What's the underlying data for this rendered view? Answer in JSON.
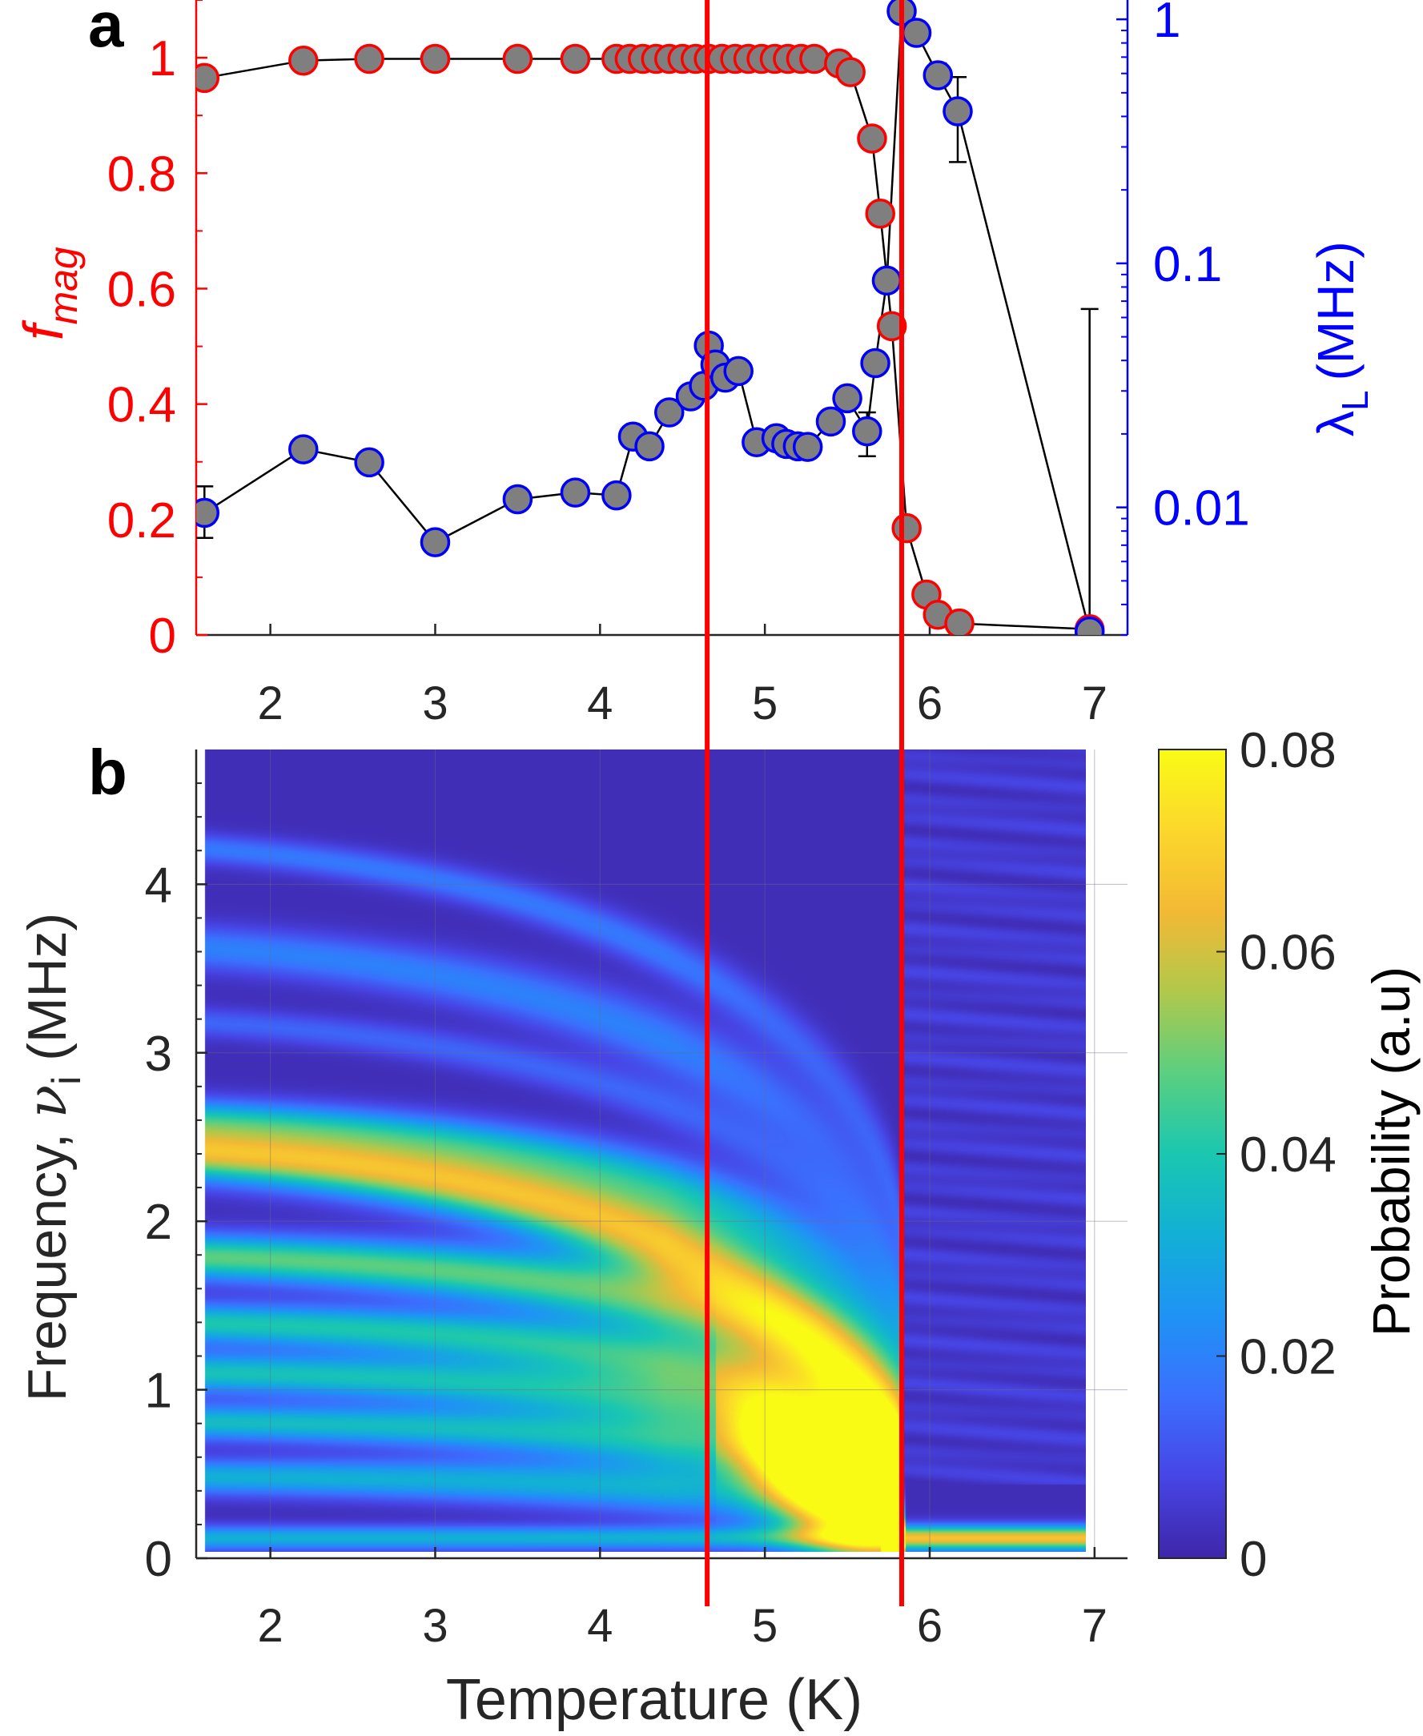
{
  "colors": {
    "fmag": "#ff0000",
    "lambda": "#0000ff",
    "marker_fill": "#7f7f7f",
    "vline": "#ff0000",
    "axis": "#262626"
  },
  "chart_data": [
    {
      "panel": "a",
      "type": "scatter",
      "xlim": [
        1.55,
        7.2
      ],
      "x_ticks": [
        2,
        3,
        4,
        5,
        6,
        7
      ],
      "grid": false,
      "vertical_lines": [
        4.65,
        5.83
      ],
      "left_axis": {
        "label_main": "f",
        "label_sub": "mag",
        "ylim": [
          0,
          1.1
        ],
        "ticks": [
          0,
          0.2,
          0.4,
          0.6,
          0.8,
          1
        ],
        "tick_labels": [
          "0",
          "0.2",
          "0.4",
          "0.6",
          "0.8",
          "1"
        ]
      },
      "right_axis": {
        "label_main": "λ",
        "label_sub": "L",
        "label_unit": "(MHz)",
        "scale": "log",
        "ylim": [
          0.003,
          1.2
        ],
        "ticks": [
          0.01,
          0.1,
          1
        ],
        "tick_labels": [
          "0.01",
          "0.1",
          "1"
        ]
      },
      "series": [
        {
          "name": "f_mag",
          "axis": "left",
          "marker_edge": "#ff0000",
          "points": [
            {
              "x": 1.6,
              "y": 0.965,
              "err": 0.005
            },
            {
              "x": 2.2,
              "y": 0.995,
              "err": 0.004
            },
            {
              "x": 2.6,
              "y": 0.998,
              "err": 0.003
            },
            {
              "x": 3.0,
              "y": 0.998,
              "err": 0.003
            },
            {
              "x": 3.5,
              "y": 0.998,
              "err": 0.003
            },
            {
              "x": 3.85,
              "y": 0.998,
              "err": 0.003
            },
            {
              "x": 4.1,
              "y": 0.998,
              "err": 0.003
            },
            {
              "x": 4.18,
              "y": 0.998,
              "err": 0.003
            },
            {
              "x": 4.26,
              "y": 0.998,
              "err": 0.003
            },
            {
              "x": 4.34,
              "y": 0.998,
              "err": 0.003
            },
            {
              "x": 4.42,
              "y": 0.998,
              "err": 0.003
            },
            {
              "x": 4.5,
              "y": 0.998,
              "err": 0.003
            },
            {
              "x": 4.58,
              "y": 0.998,
              "err": 0.003
            },
            {
              "x": 4.66,
              "y": 0.998,
              "err": 0.003
            },
            {
              "x": 4.74,
              "y": 0.998,
              "err": 0.003
            },
            {
              "x": 4.82,
              "y": 0.998,
              "err": 0.003
            },
            {
              "x": 4.9,
              "y": 0.998,
              "err": 0.003
            },
            {
              "x": 4.98,
              "y": 0.998,
              "err": 0.003
            },
            {
              "x": 5.06,
              "y": 0.998,
              "err": 0.003
            },
            {
              "x": 5.14,
              "y": 0.998,
              "err": 0.003
            },
            {
              "x": 5.22,
              "y": 0.998,
              "err": 0.003
            },
            {
              "x": 5.3,
              "y": 0.998,
              "err": 0.003
            },
            {
              "x": 5.45,
              "y": 0.99,
              "err": 0.004
            },
            {
              "x": 5.52,
              "y": 0.975,
              "err": 0.005
            },
            {
              "x": 5.65,
              "y": 0.86,
              "err": 0.006
            },
            {
              "x": 5.7,
              "y": 0.73,
              "err": 0.006
            },
            {
              "x": 5.77,
              "y": 0.535,
              "err": 0.008
            },
            {
              "x": 5.86,
              "y": 0.185,
              "err": 0.005
            },
            {
              "x": 5.98,
              "y": 0.07,
              "err": 0.004
            },
            {
              "x": 6.05,
              "y": 0.035,
              "err": 0.004
            },
            {
              "x": 6.18,
              "y": 0.02,
              "err": 0.003
            },
            {
              "x": 6.97,
              "y": 0.01,
              "err": 0.003
            }
          ]
        },
        {
          "name": "lambda_L",
          "axis": "right",
          "marker_edge": "#0000ff",
          "points": [
            {
              "x": 1.6,
              "y": 0.0095,
              "lo": 0.0075,
              "hi": 0.0122
            },
            {
              "x": 2.2,
              "y": 0.0173,
              "lo": 0.0163,
              "hi": 0.0183
            },
            {
              "x": 2.6,
              "y": 0.0153,
              "lo": 0.0145,
              "hi": 0.0162
            },
            {
              "x": 3.0,
              "y": 0.0072,
              "lo": 0.0068,
              "hi": 0.0077
            },
            {
              "x": 3.5,
              "y": 0.0108,
              "lo": 0.0103,
              "hi": 0.0113
            },
            {
              "x": 3.85,
              "y": 0.0115,
              "lo": 0.011,
              "hi": 0.012
            },
            {
              "x": 4.1,
              "y": 0.0112,
              "lo": 0.0107,
              "hi": 0.0117
            },
            {
              "x": 4.2,
              "y": 0.0195,
              "lo": 0.0188,
              "hi": 0.0202
            },
            {
              "x": 4.3,
              "y": 0.0178,
              "lo": 0.0171,
              "hi": 0.0185
            },
            {
              "x": 4.42,
              "y": 0.0245,
              "lo": 0.0237,
              "hi": 0.0253
            },
            {
              "x": 4.55,
              "y": 0.0285,
              "lo": 0.0276,
              "hi": 0.0294
            },
            {
              "x": 4.63,
              "y": 0.0315,
              "lo": 0.0305,
              "hi": 0.0325
            },
            {
              "x": 4.66,
              "y": 0.046,
              "lo": 0.0446,
              "hi": 0.0474
            },
            {
              "x": 4.7,
              "y": 0.0385,
              "lo": 0.0373,
              "hi": 0.0397
            },
            {
              "x": 4.76,
              "y": 0.034,
              "lo": 0.033,
              "hi": 0.035
            },
            {
              "x": 4.84,
              "y": 0.0362,
              "lo": 0.0351,
              "hi": 0.0373
            },
            {
              "x": 4.95,
              "y": 0.0185,
              "lo": 0.0179,
              "hi": 0.0191
            },
            {
              "x": 5.07,
              "y": 0.0192,
              "lo": 0.0186,
              "hi": 0.0198
            },
            {
              "x": 5.13,
              "y": 0.0182,
              "lo": 0.0176,
              "hi": 0.0188
            },
            {
              "x": 5.2,
              "y": 0.0178,
              "lo": 0.0172,
              "hi": 0.0184
            },
            {
              "x": 5.26,
              "y": 0.0177,
              "lo": 0.0171,
              "hi": 0.0183
            },
            {
              "x": 5.4,
              "y": 0.0225,
              "lo": 0.0218,
              "hi": 0.0232
            },
            {
              "x": 5.5,
              "y": 0.028,
              "lo": 0.0271,
              "hi": 0.0289
            },
            {
              "x": 5.62,
              "y": 0.0205,
              "lo": 0.0162,
              "hi": 0.0245
            },
            {
              "x": 5.67,
              "y": 0.039,
              "lo": 0.0378,
              "hi": 0.0402
            },
            {
              "x": 5.74,
              "y": 0.085,
              "lo": 0.081,
              "hi": 0.093
            },
            {
              "x": 5.83,
              "y": 1.08,
              "lo": 1.04,
              "hi": 1.12
            },
            {
              "x": 5.92,
              "y": 0.88,
              "lo": 0.85,
              "hi": 0.91
            },
            {
              "x": 6.05,
              "y": 0.59,
              "lo": 0.56,
              "hi": 0.66
            },
            {
              "x": 6.17,
              "y": 0.42,
              "lo": 0.26,
              "hi": 0.58
            },
            {
              "x": 6.97,
              "y": 0.0031,
              "lo": 0.0031,
              "hi": 0.065
            }
          ]
        }
      ]
    },
    {
      "panel": "b",
      "type": "heatmap",
      "xlabel": "Temperature (K)",
      "ylabel_main": "Frequency, ",
      "ylabel_symbol": "ν",
      "ylabel_sub": "i",
      "ylabel_unit": " (MHz)",
      "xlim": [
        1.55,
        7.2
      ],
      "ylim": [
        0,
        4.8
      ],
      "x_ticks": [
        2,
        3,
        4,
        5,
        6,
        7
      ],
      "y_ticks": [
        0,
        1,
        2,
        3,
        4
      ],
      "data_x_range": [
        1.6,
        6.97
      ],
      "grid": true,
      "vertical_lines": [
        4.65,
        5.83
      ],
      "colorbar": {
        "label": "Probability (a.u)",
        "range": [
          0,
          0.08
        ],
        "ticks": [
          0,
          0.02,
          0.04,
          0.06,
          0.08
        ],
        "tick_labels": [
          "0",
          "0.02",
          "0.04",
          "0.06",
          "0.08"
        ],
        "colormap": [
          "#3e26a8",
          "#4745e5",
          "#3b6ffe",
          "#1f93f5",
          "#12b0d5",
          "#1ac7b0",
          "#5bcf80",
          "#b0c84c",
          "#f3b934",
          "#fbd72b",
          "#f9fb15"
        ]
      },
      "bands": [
        {
          "f0": 2.43,
          "fc": 0.35,
          "width": 0.11,
          "amp": 0.064
        },
        {
          "f0": 1.78,
          "fc": 0.75,
          "width": 0.09,
          "amp": 0.046
        },
        {
          "f0": 1.38,
          "fc": 0.55,
          "width": 0.08,
          "amp": 0.038
        },
        {
          "f0": 1.08,
          "fc": 0.45,
          "width": 0.08,
          "amp": 0.036
        },
        {
          "f0": 0.78,
          "fc": 0.35,
          "width": 0.07,
          "amp": 0.034
        },
        {
          "f0": 0.45,
          "fc": 0.2,
          "width": 0.07,
          "amp": 0.03
        },
        {
          "f0": 2.62,
          "fc": 1.1,
          "width": 0.08,
          "amp": 0.028
        },
        {
          "f0": 3.65,
          "fc": 1.5,
          "width": 0.09,
          "amp": 0.018
        },
        {
          "f0": 4.25,
          "fc": 1.8,
          "width": 0.06,
          "amp": 0.016
        },
        {
          "f0": 3.2,
          "fc": 1.3,
          "width": 0.06,
          "amp": 0.012
        }
      ],
      "transition_temperature": 5.83,
      "collapse_hotspot": {
        "x": 5.3,
        "y": 0.75,
        "amp": 0.08
      },
      "low_frequency_line": {
        "f": 0.08,
        "amp_low_T": 0.03,
        "amp_high_T": 0.065
      }
    }
  ]
}
